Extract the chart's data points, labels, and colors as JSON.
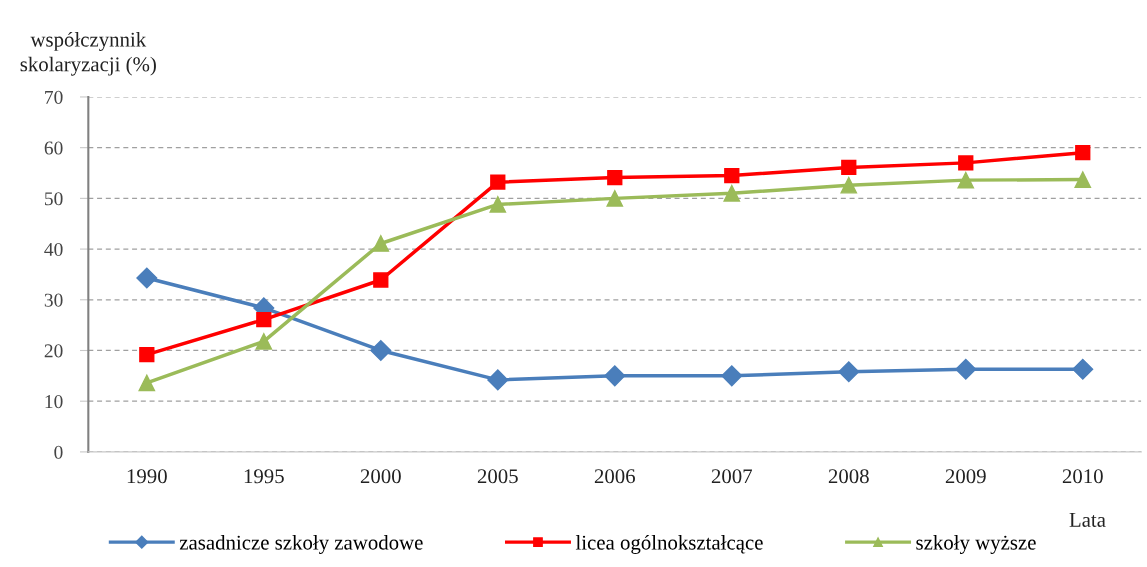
{
  "chart_data": {
    "type": "line",
    "ylabel": "współczynnik\nskolaryzacji (%)",
    "xlabel": "Lata",
    "categories": [
      "1990",
      "1995",
      "2000",
      "2005",
      "2006",
      "2007",
      "2008",
      "2009",
      "2010"
    ],
    "series": [
      {
        "name": "zasadnicze szkoły zawodowe",
        "color": "#4a7ebb",
        "marker": "diamond",
        "values": [
          34.3,
          28.4,
          20,
          14.2,
          15,
          15,
          15.8,
          16.3,
          16.3
        ]
      },
      {
        "name": "licea ogólnokształcące",
        "color": "#ff0000",
        "marker": "square",
        "values": [
          19.2,
          26.1,
          33.9,
          53.2,
          54.1,
          54.5,
          56.1,
          57,
          59
        ]
      },
      {
        "name": "szkoły wyższe",
        "color": "#9bbb59",
        "marker": "triangle",
        "values": [
          13.6,
          21.8,
          41.1,
          48.8,
          50,
          51,
          52.6,
          53.6,
          53.7
        ]
      }
    ],
    "ylim": [
      0,
      70
    ],
    "yticks": [
      0,
      10,
      20,
      30,
      40,
      50,
      60,
      70
    ],
    "grid": "y",
    "legend": "bottom",
    "line_style": "solid"
  }
}
